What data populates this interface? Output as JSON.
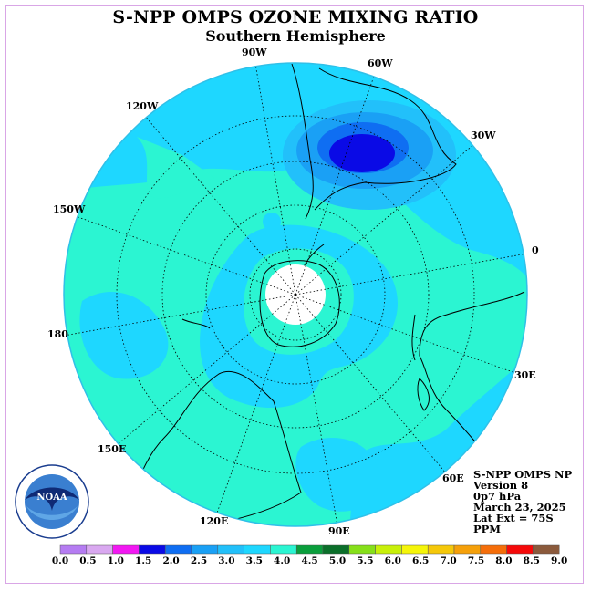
{
  "title": "S-NPP OMPS OZONE MIXING RATIO",
  "subtitle": "Southern Hemisphere",
  "longitude_labels": {
    "w90": "90W",
    "w60": "60W",
    "w30": "30W",
    "lon0": "0",
    "e30": "30E",
    "e60": "60E",
    "e90": "90E",
    "e120": "120E",
    "e150": "150E",
    "lon180": "180",
    "w150": "150W",
    "w120": "120W"
  },
  "info": {
    "instrument": "S-NPP OMPS NP",
    "version": "Version 8",
    "level": "0p7 hPa",
    "date": "March 23, 2025",
    "lat_ext": "Lat Ext = 75S",
    "units": "PPM"
  },
  "colorbar": {
    "ticks": [
      "0.0",
      "0.5",
      "1.0",
      "1.5",
      "2.0",
      "2.5",
      "3.0",
      "3.5",
      "4.0",
      "4.5",
      "5.0",
      "5.5",
      "6.0",
      "6.5",
      "7.0",
      "7.5",
      "8.0",
      "8.5",
      "9.0"
    ],
    "colors": [
      "#b57cf2",
      "#d9a8f0",
      "#f218f2",
      "#0a0ae6",
      "#0f6ef2",
      "#1aa0f5",
      "#22c0fa",
      "#1ed7ff",
      "#2bf5d2",
      "#0a9e3c",
      "#0b6f2a",
      "#86e01a",
      "#c8f00a",
      "#f5f50a",
      "#f5c80a",
      "#f5a00a",
      "#f56e0a",
      "#f50a0a",
      "#8b5a3c"
    ]
  },
  "field_colors": {
    "background_level": "#1ed7ff",
    "low_level": "#2bf5d2",
    "mid_level": "#22c0fa",
    "high_level": "#0f6ef2",
    "peak_level": "#0a0ae6",
    "outline": "#30c0e8"
  },
  "logo": {
    "text": "NOAA"
  }
}
